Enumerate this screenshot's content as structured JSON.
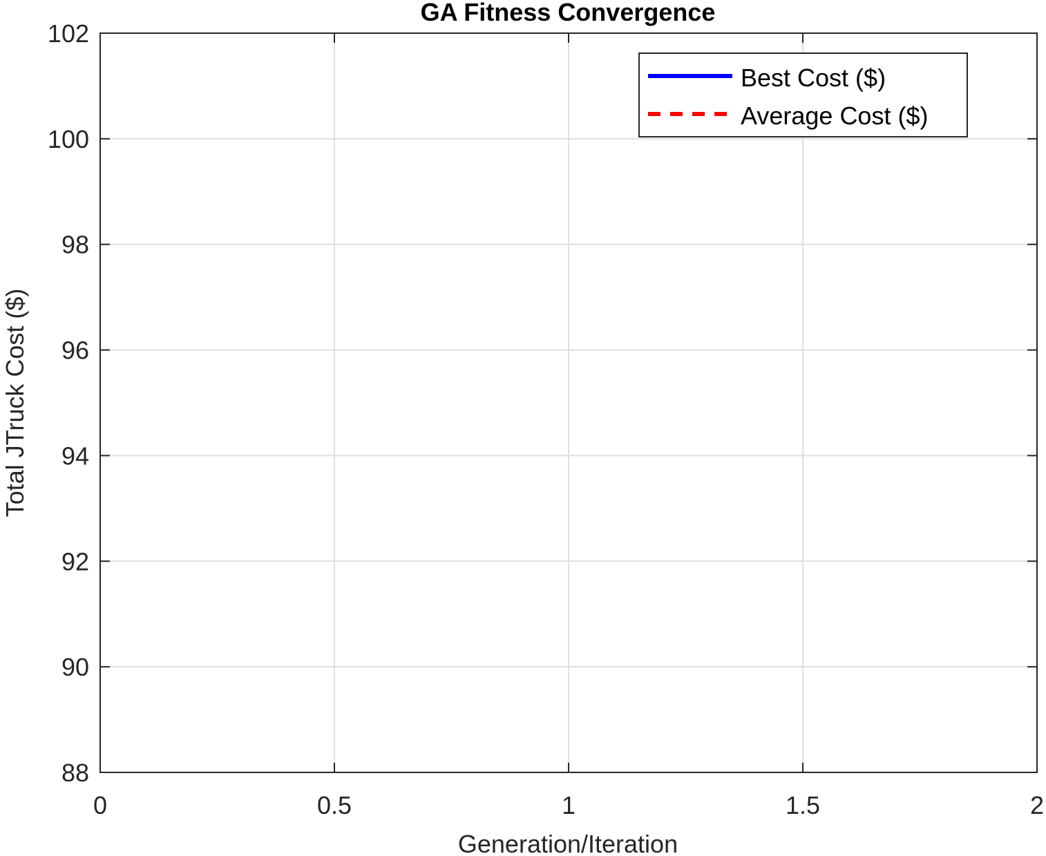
{
  "chart_data": {
    "type": "line",
    "title": "GA Fitness Convergence",
    "xlabel": "Generation/Iteration",
    "ylabel": "Total JTruck Cost ($)",
    "xlim": [
      0,
      2
    ],
    "ylim": [
      88,
      102
    ],
    "xticks": [
      0,
      0.5,
      1,
      1.5,
      2
    ],
    "xtick_labels": [
      "0",
      "0.5",
      "1",
      "1.5",
      "2"
    ],
    "yticks": [
      88,
      90,
      92,
      94,
      96,
      98,
      100,
      102
    ],
    "ytick_labels": [
      "88",
      "90",
      "92",
      "94",
      "96",
      "98",
      "100",
      "102"
    ],
    "grid": true,
    "legend_position": "top-right",
    "series": [
      {
        "name": "Best Cost ($)",
        "color": "#0000ff",
        "line_style": "solid",
        "x": [],
        "y": []
      },
      {
        "name": "Average Cost ($)",
        "color": "#ff0000",
        "line_style": "dashed",
        "x": [],
        "y": []
      }
    ]
  }
}
